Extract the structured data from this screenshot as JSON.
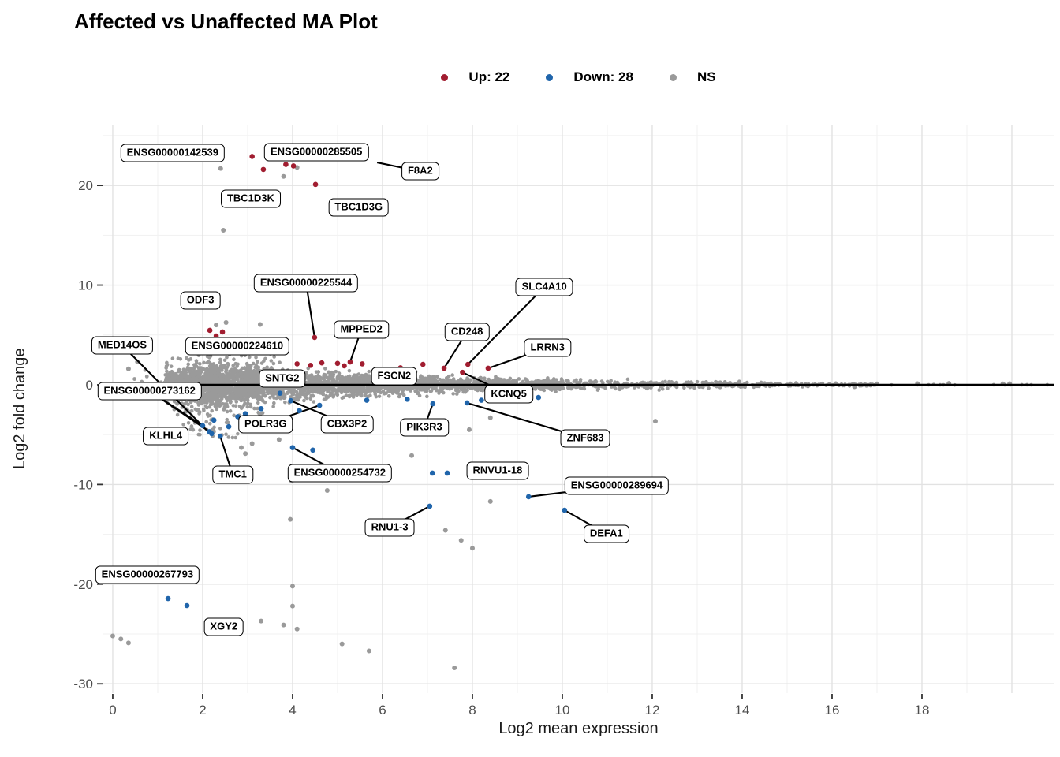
{
  "legend": {
    "items": [
      {
        "label": "Up: 22",
        "color": "#a11d30"
      },
      {
        "label": "Down: 28",
        "color": "#2065ab"
      },
      {
        "label": "NS",
        "color": "#9a9a9a"
      }
    ]
  },
  "chart_data": {
    "type": "scatter",
    "title": "Affected vs Unaffected MA Plot",
    "xlabel": "Log2 mean expression",
    "ylabel": "Log2 fold change",
    "xlim": [
      -0.21,
      20.93
    ],
    "ylim": [
      -30.93,
      26.1
    ],
    "xticks": [
      0,
      2,
      4,
      6,
      8,
      10,
      12,
      14,
      16,
      18
    ],
    "yticks": [
      20,
      10,
      0,
      -10,
      -20,
      -30
    ],
    "grid": {
      "major_x_step": 2,
      "minor_x_step": 1,
      "major_y_step": 10,
      "minor_y_step": 5,
      "major_color": "#e2e2e2",
      "minor_color": "#f1f1f1"
    },
    "zero_line_y": 0,
    "colors": {
      "up": "#a11d30",
      "down": "#2065ab",
      "ns": "#9a9a9a",
      "line": "#000000"
    },
    "series": [
      {
        "name": "Up",
        "color": "#a11d30",
        "points": [
          [
            3.1,
            22.9
          ],
          [
            3.85,
            22.1
          ],
          [
            4.02,
            21.95
          ],
          [
            3.35,
            21.6
          ],
          [
            4.51,
            20.1
          ],
          [
            2.16,
            5.46
          ],
          [
            2.44,
            5.3
          ],
          [
            4.49,
            4.75
          ],
          [
            5.28,
            2.29
          ],
          [
            7.9,
            2.05
          ],
          [
            7.37,
            1.66
          ],
          [
            8.35,
            1.66
          ],
          [
            6.4,
            1.7
          ],
          [
            7.78,
            1.25
          ],
          [
            4.1,
            2.1
          ],
          [
            4.65,
            2.2
          ],
          [
            5.0,
            2.15
          ],
          [
            5.55,
            2.1
          ],
          [
            6.9,
            2.05
          ],
          [
            2.3,
            4.9
          ],
          [
            4.4,
            1.95
          ],
          [
            5.15,
            1.9
          ]
        ]
      },
      {
        "name": "Down",
        "color": "#2065ab",
        "points": [
          [
            2.0,
            -4.1
          ],
          [
            2.15,
            -4.7
          ],
          [
            2.39,
            -5.15
          ],
          [
            4.6,
            -2.06
          ],
          [
            3.96,
            -1.6
          ],
          [
            7.12,
            -1.9
          ],
          [
            7.88,
            -1.82
          ],
          [
            9.47,
            -1.27
          ],
          [
            4.0,
            -6.3
          ],
          [
            7.11,
            -8.86
          ],
          [
            7.44,
            -8.86
          ],
          [
            7.05,
            -12.18
          ],
          [
            9.25,
            -11.23
          ],
          [
            10.05,
            -12.58
          ],
          [
            1.23,
            -21.44
          ],
          [
            1.65,
            -22.15
          ],
          [
            2.2,
            -4.9
          ],
          [
            3.72,
            -0.85
          ],
          [
            2.25,
            -3.55
          ],
          [
            2.58,
            -4.2
          ],
          [
            2.78,
            -3.2
          ],
          [
            4.15,
            -2.6
          ],
          [
            5.65,
            -1.55
          ],
          [
            6.55,
            -1.45
          ],
          [
            8.2,
            -1.55
          ],
          [
            4.45,
            -6.55
          ],
          [
            2.95,
            -2.9
          ],
          [
            3.3,
            -2.4
          ]
        ]
      },
      {
        "name": "NS_outliers",
        "color": "#9a9a9a",
        "points": [
          [
            2.4,
            21.7
          ],
          [
            4.1,
            21.8
          ],
          [
            3.8,
            20.9
          ],
          [
            2.46,
            15.5
          ],
          [
            2.3,
            6.0
          ],
          [
            2.52,
            6.25
          ],
          [
            3.28,
            6.05
          ],
          [
            0.35,
            1.6
          ],
          [
            0.55,
            2.3
          ],
          [
            0.3,
            -0.8
          ],
          [
            2.86,
            -6.3
          ],
          [
            2.95,
            -6.9
          ],
          [
            3.1,
            -5.9
          ],
          [
            3.7,
            -5.5
          ],
          [
            4.6,
            -8.1
          ],
          [
            6.65,
            -7.1
          ],
          [
            3.98,
            -9.65
          ],
          [
            4.77,
            -10.6
          ],
          [
            3.95,
            -13.5
          ],
          [
            6.2,
            -14.4
          ],
          [
            7.4,
            -14.6
          ],
          [
            7.75,
            -15.6
          ],
          [
            8.0,
            -16.4
          ],
          [
            4.0,
            -20.2
          ],
          [
            4.0,
            -22.2
          ],
          [
            3.3,
            -23.7
          ],
          [
            3.8,
            -24.1
          ],
          [
            4.1,
            -24.5
          ],
          [
            5.1,
            -26.0
          ],
          [
            5.7,
            -26.7
          ],
          [
            7.6,
            -28.4
          ],
          [
            0.0,
            -25.2
          ],
          [
            0.18,
            -25.5
          ],
          [
            0.35,
            -25.9
          ],
          [
            12.07,
            -3.65
          ],
          [
            8.4,
            -11.7
          ],
          [
            7.93,
            -4.5
          ],
          [
            8.4,
            -3.3
          ],
          [
            16.5,
            -0.2
          ],
          [
            17.0,
            0.1
          ],
          [
            17.9,
            0.12
          ],
          [
            18.6,
            0.15
          ],
          [
            19.8,
            0.1
          ],
          [
            19.95,
            0.12
          ]
        ]
      }
    ],
    "ns_band": {
      "description": "dense non-significant point cloud centered on y=0, widest near x=2, tapering to a thin line by x=17",
      "seed": 20240613,
      "n": 4200,
      "halfwidth_profile": [
        [
          0.8,
          0.5
        ],
        [
          1.3,
          2.0
        ],
        [
          1.8,
          3.2
        ],
        [
          2.6,
          3.4
        ],
        [
          3.2,
          2.7
        ],
        [
          4.0,
          2.2
        ],
        [
          5.0,
          1.85
        ],
        [
          6.0,
          1.5
        ],
        [
          7.0,
          1.3
        ],
        [
          8.0,
          1.1
        ],
        [
          9.0,
          0.95
        ],
        [
          10,
          0.8
        ],
        [
          11,
          0.72
        ],
        [
          12,
          0.62
        ],
        [
          13,
          0.52
        ],
        [
          14,
          0.45
        ],
        [
          15,
          0.36
        ],
        [
          16,
          0.27
        ],
        [
          17,
          0.14
        ],
        [
          21,
          0.07
        ]
      ],
      "x_buckets": [
        [
          0.42,
          1.15,
          3.35
        ],
        [
          0.3,
          3.35,
          6.5
        ],
        [
          0.18,
          6.5,
          10.0
        ],
        [
          0.065,
          10.0,
          14.0
        ],
        [
          0.03,
          14.0,
          17.0
        ],
        [
          0.005,
          17.0,
          20.9
        ]
      ]
    },
    "labels": [
      {
        "text": "ENSG00000142539",
        "x": 1.33,
        "y": 23.26
      },
      {
        "text": "ENSG00000285505",
        "x": 4.53,
        "y": 23.34
      },
      {
        "text": "F8A2",
        "x": 6.84,
        "y": 21.4,
        "targets": [
          [
            5.88,
            22.3
          ]
        ]
      },
      {
        "text": "TBC1D3K",
        "x": 3.07,
        "y": 18.67
      },
      {
        "text": "TBC1D3G",
        "x": 5.47,
        "y": 17.8
      },
      {
        "text": "ODF3",
        "x": 1.95,
        "y": 8.47
      },
      {
        "text": "ENSG00000225544",
        "x": 4.3,
        "y": 10.2,
        "targets": [
          [
            4.49,
            4.75
          ]
        ]
      },
      {
        "text": "MPPED2",
        "x": 5.53,
        "y": 5.54,
        "targets": [
          [
            5.28,
            2.29
          ]
        ]
      },
      {
        "text": "MED14OS",
        "x": 0.21,
        "y": 3.96,
        "targets": [
          [
            2.08,
            -4.5
          ]
        ]
      },
      {
        "text": "ENSG00000224610",
        "x": 2.77,
        "y": 3.88
      },
      {
        "text": "SNTG2",
        "x": 3.77,
        "y": 0.63
      },
      {
        "text": "FSCN2",
        "x": 6.26,
        "y": 0.87
      },
      {
        "text": "SLC4A10",
        "x": 9.6,
        "y": 9.81,
        "targets": [
          [
            7.9,
            2.05
          ]
        ]
      },
      {
        "text": "CD248",
        "x": 7.88,
        "y": 5.3,
        "targets": [
          [
            7.37,
            1.66
          ]
        ]
      },
      {
        "text": "LRRN3",
        "x": 9.67,
        "y": 3.72,
        "targets": [
          [
            8.35,
            1.66
          ]
        ]
      },
      {
        "text": "ENSG00000273162",
        "x": 0.82,
        "y": -0.63,
        "targets": [
          [
            2.0,
            -4.1
          ],
          [
            2.15,
            -4.7
          ]
        ]
      },
      {
        "text": "KLHL4",
        "x": 1.18,
        "y": -5.14
      },
      {
        "text": "POLR3G",
        "x": 3.4,
        "y": -3.96,
        "targets": [
          [
            4.6,
            -2.06
          ]
        ]
      },
      {
        "text": "CBX3P2",
        "x": 5.21,
        "y": -3.96,
        "targets": [
          [
            3.96,
            -1.6
          ]
        ]
      },
      {
        "text": "PIK3R3",
        "x": 6.93,
        "y": -4.27,
        "targets": [
          [
            7.12,
            -1.9
          ]
        ]
      },
      {
        "text": "KCNQ5",
        "x": 8.81,
        "y": -0.95,
        "targets": [
          [
            7.78,
            1.25
          ]
        ]
      },
      {
        "text": "ZNF683",
        "x": 10.51,
        "y": -5.38,
        "targets": [
          [
            7.88,
            -1.82
          ]
        ]
      },
      {
        "text": "ENSG00000254732",
        "x": 5.05,
        "y": -8.86,
        "targets": [
          [
            4.0,
            -6.3
          ]
        ]
      },
      {
        "text": "RNVU1-18",
        "x": 8.56,
        "y": -8.62
      },
      {
        "text": "TMC1",
        "x": 2.67,
        "y": -9.02,
        "targets": [
          [
            2.39,
            -5.15
          ]
        ]
      },
      {
        "text": "RNU1-3",
        "x": 6.16,
        "y": -14.32,
        "targets": [
          [
            7.05,
            -12.18
          ]
        ]
      },
      {
        "text": "ENSG00000289694",
        "x": 11.21,
        "y": -10.13,
        "targets": [
          [
            9.25,
            -11.23
          ]
        ]
      },
      {
        "text": "DEFA1",
        "x": 10.98,
        "y": -14.95,
        "targets": [
          [
            10.05,
            -12.58
          ]
        ]
      },
      {
        "text": "ENSG00000267793",
        "x": 0.77,
        "y": -19.07
      },
      {
        "text": "XGY2",
        "x": 2.47,
        "y": -24.3
      }
    ]
  }
}
